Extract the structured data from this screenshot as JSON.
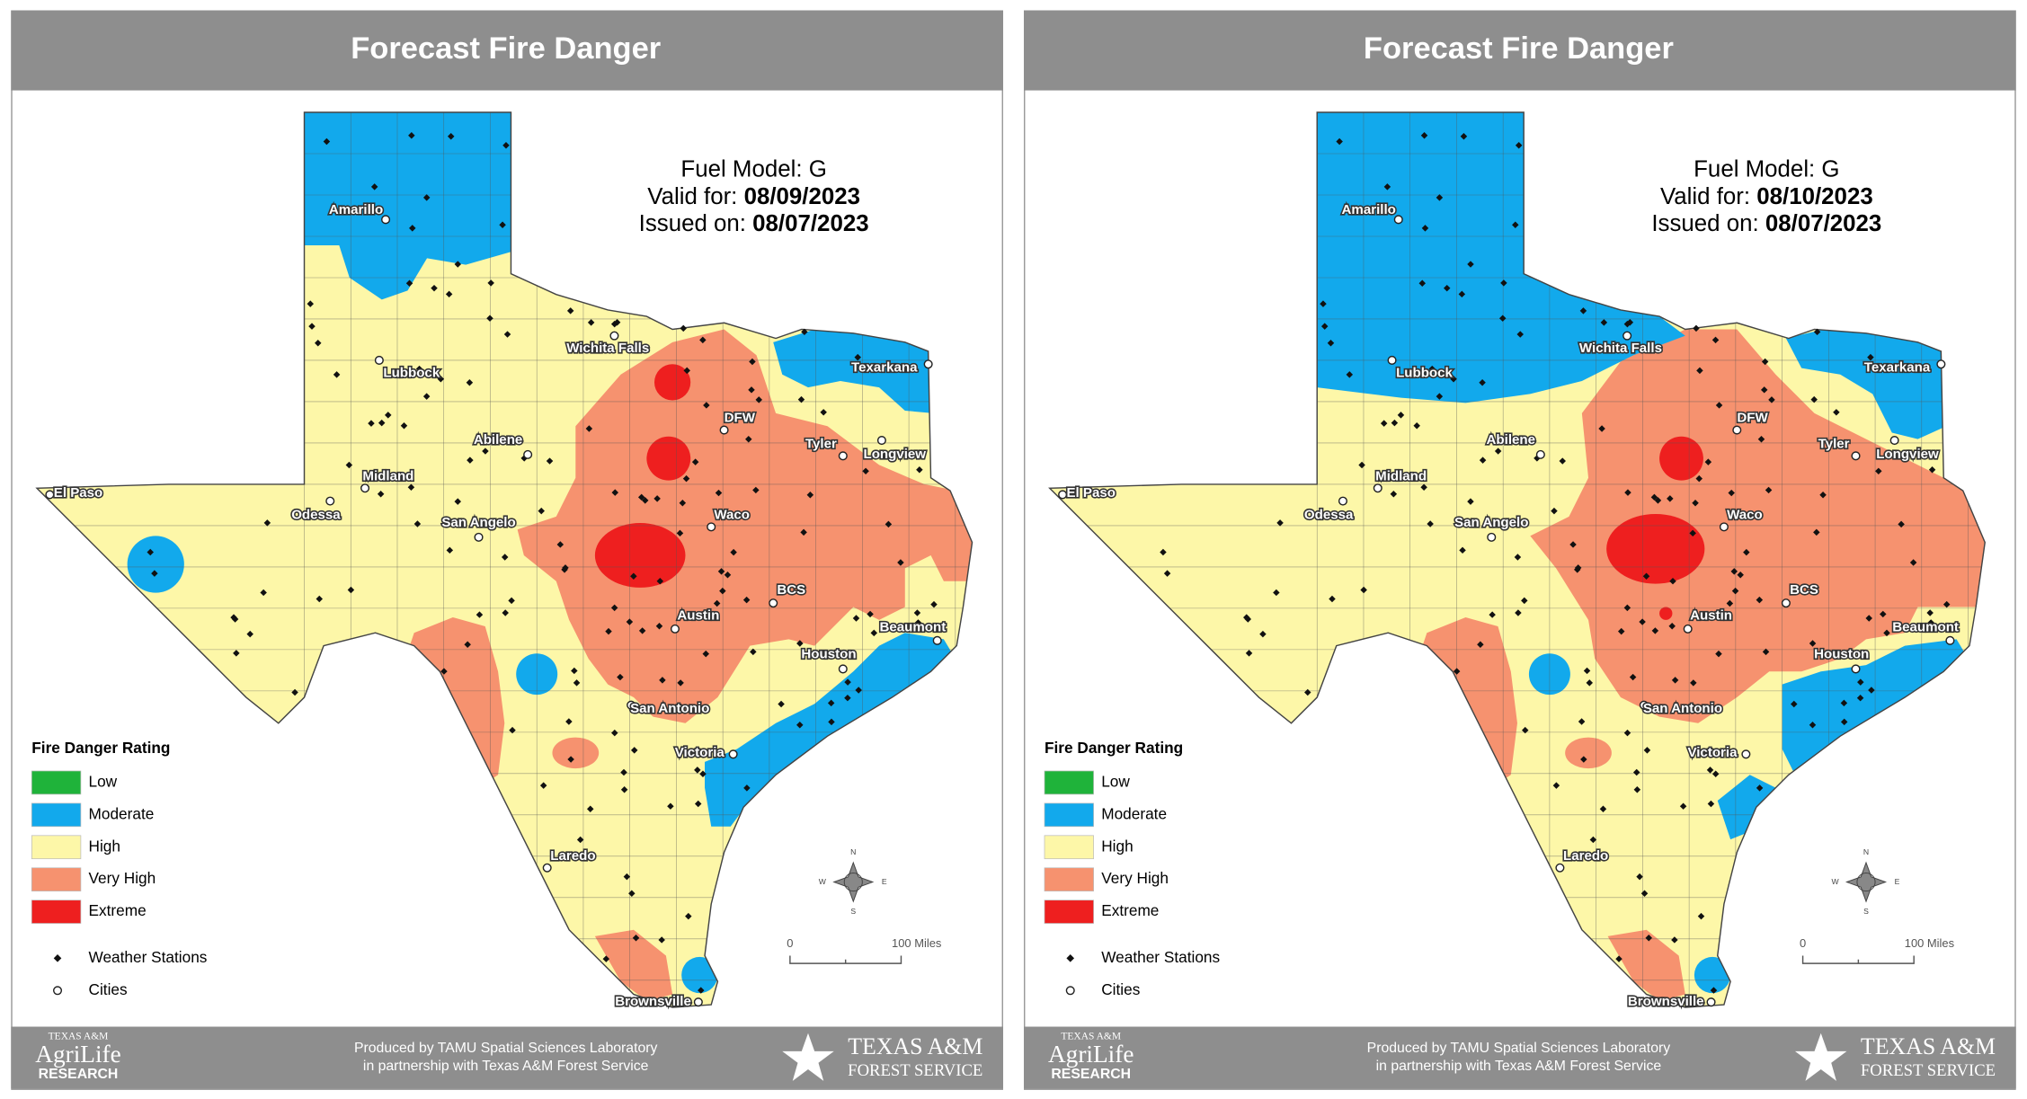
{
  "panels": [
    {
      "title": "Forecast Fire Danger",
      "fuel_model": "Fuel Model: G",
      "valid_label": "Valid for:",
      "valid_date": "08/09/2023",
      "issued_label": "Issued on:",
      "issued_date": "08/07/2023",
      "cities": [
        "Amarillo",
        "Lubbock",
        "Wichita Falls",
        "Texarkana",
        "DFW",
        "Abilene",
        "Tyler",
        "Longview",
        "Midland",
        "El Paso",
        "Odessa",
        "San Angelo",
        "Waco",
        "BCS",
        "Austin",
        "Beaumont",
        "Houston",
        "San Antonio",
        "Victoria",
        "Laredo",
        "Brownsville"
      ],
      "legend": {
        "title": "Fire Danger Rating",
        "items": [
          "Low",
          "Moderate",
          "High",
          "Very High",
          "Extreme",
          "Weather Stations",
          "Cities"
        ]
      },
      "scale": {
        "start": "0",
        "end": "100 Miles"
      },
      "compass": [
        "N",
        "E",
        "S",
        "W"
      ],
      "footer": {
        "credit_line1": "Produced by TAMU Spatial Sciences Laboratory",
        "credit_line2": "in partnership with Texas A&M Forest Service",
        "left_logo": [
          "TEXAS A&M",
          "AgriLife",
          "RESEARCH"
        ],
        "right_logo": [
          "TEXAS A&M",
          "FOREST SERVICE"
        ]
      }
    },
    {
      "title": "Forecast Fire Danger",
      "fuel_model": "Fuel Model: G",
      "valid_label": "Valid for:",
      "valid_date": "08/10/2023",
      "issued_label": "Issued on:",
      "issued_date": "08/07/2023",
      "cities": [
        "Amarillo",
        "Lubbock",
        "Wichita Falls",
        "Texarkana",
        "DFW",
        "Abilene",
        "Tyler",
        "Longview",
        "Midland",
        "El Paso",
        "Odessa",
        "San Angelo",
        "Waco",
        "BCS",
        "Austin",
        "Beaumont",
        "Houston",
        "San Antonio",
        "Victoria",
        "Laredo",
        "Brownsville"
      ],
      "legend": {
        "title": "Fire Danger Rating",
        "items": [
          "Low",
          "Moderate",
          "High",
          "Very High",
          "Extreme",
          "Weather Stations",
          "Cities"
        ]
      },
      "scale": {
        "start": "0",
        "end": "100 Miles"
      },
      "compass": [
        "N",
        "E",
        "S",
        "W"
      ],
      "footer": {
        "credit_line1": "Produced by TAMU Spatial Sciences Laboratory",
        "credit_line2": "in partnership with Texas A&M Forest Service",
        "left_logo": [
          "TEXAS A&M",
          "AgriLife",
          "RESEARCH"
        ],
        "right_logo": [
          "TEXAS A&M",
          "FOREST SERVICE"
        ]
      }
    }
  ]
}
